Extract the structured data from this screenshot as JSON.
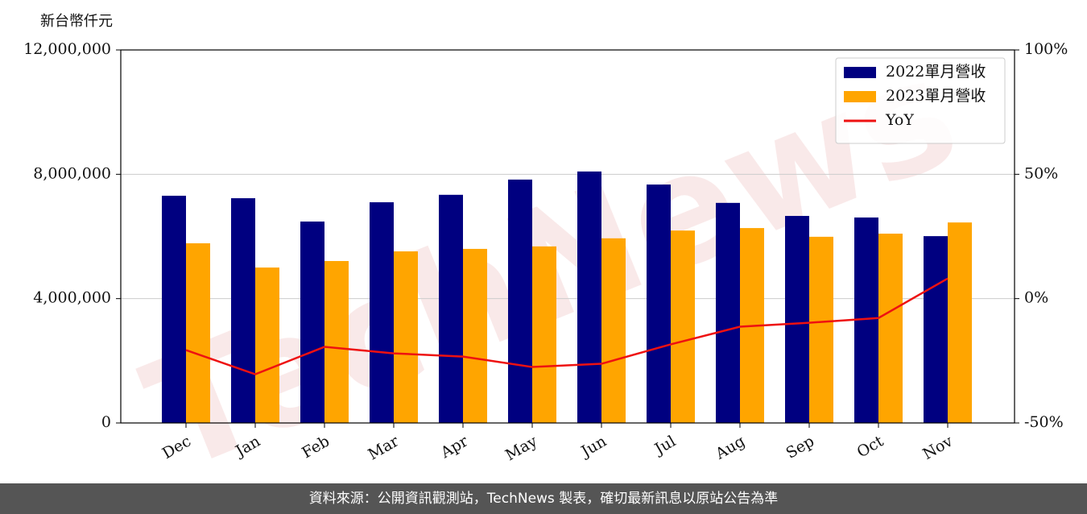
{
  "chart_data": {
    "type": "bar",
    "ylabel": "新台幣仟元",
    "watermark": "TechNews",
    "categories": [
      "Dec",
      "Jan",
      "Feb",
      "Mar",
      "Apr",
      "May",
      "Jun",
      "Jul",
      "Aug",
      "Sep",
      "Oct",
      "Nov"
    ],
    "series": [
      {
        "name": "2022單月營收",
        "color": "#000080",
        "type": "bar",
        "values": [
          7310000,
          7230000,
          6480000,
          7100000,
          7340000,
          7830000,
          8090000,
          7670000,
          7080000,
          6660000,
          6610000,
          6010000
        ]
      },
      {
        "name": "2023單月營收",
        "color": "#ffa500",
        "type": "bar",
        "values": [
          5780000,
          5000000,
          5210000,
          5520000,
          5600000,
          5680000,
          5940000,
          6190000,
          6270000,
          5990000,
          6090000,
          6450000
        ]
      },
      {
        "name": "YoY",
        "color": "#ee1111",
        "type": "line",
        "axis": "y2",
        "values": [
          -20.7,
          -30.4,
          -19.4,
          -22.0,
          -23.3,
          -27.5,
          -26.2,
          -18.4,
          -11.3,
          -9.7,
          -7.8,
          8.1
        ]
      }
    ],
    "ylim": [
      0,
      12000000
    ],
    "yticks": [
      0,
      {
        "value": 4000000,
        "label": "4,000,000"
      },
      {
        "value": 8000000,
        "label": "8,000,000"
      },
      {
        "value": 12000000,
        "label": "12,000,000"
      }
    ],
    "y2lim": [
      -50,
      100
    ],
    "y2ticks": [
      {
        "value": -50,
        "label": "-50%"
      },
      {
        "value": 0,
        "label": "0%"
      },
      {
        "value": 50,
        "label": "50%"
      },
      {
        "value": 100,
        "label": "100%"
      }
    ],
    "grid": true,
    "legend": "upper right"
  },
  "footer": "資料來源：公開資訊觀測站，TechNews 製表，確切最新訊息以原站公告為準"
}
